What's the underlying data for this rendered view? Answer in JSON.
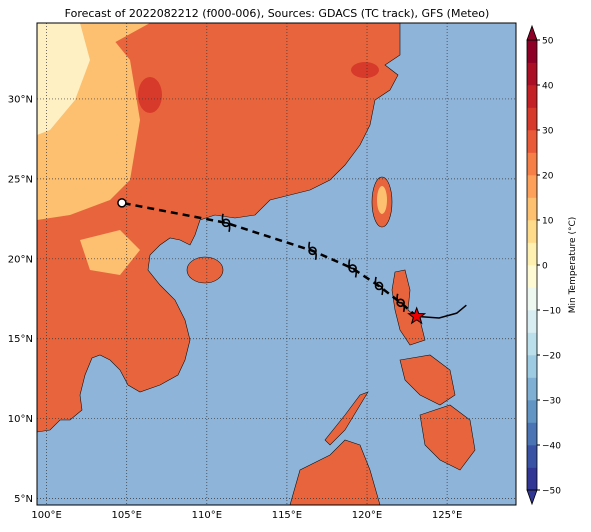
{
  "title": "Forecast of 2022082212 (f000-006), Sources: GDACS (TC track), GFS (Meteo)",
  "map": {
    "xlim": [
      99.4,
      129.3
    ],
    "ylim": [
      4.6,
      34.75
    ],
    "grid": true,
    "xticks": [
      {
        "value": 100,
        "label": "100°E"
      },
      {
        "value": 105,
        "label": "105°E"
      },
      {
        "value": 110,
        "label": "110°E"
      },
      {
        "value": 115,
        "label": "115°E"
      },
      {
        "value": 120,
        "label": "120°E"
      },
      {
        "value": 125,
        "label": "125°E"
      }
    ],
    "yticks": [
      {
        "value": 5,
        "label": "5°N"
      },
      {
        "value": 10,
        "label": "10°N"
      },
      {
        "value": 15,
        "label": "15°N"
      },
      {
        "value": 20,
        "label": "20°N"
      },
      {
        "value": 25,
        "label": "25°N"
      },
      {
        "value": 30,
        "label": "30°N"
      }
    ]
  },
  "track": {
    "observed": {
      "lon": [
        126.2,
        125.6,
        124.5,
        123.1
      ],
      "lat": [
        17.1,
        16.6,
        16.3,
        16.4
      ]
    },
    "forecast": {
      "lon": [
        123.1,
        122.1,
        120.75,
        119.1,
        116.6,
        111.2,
        104.7
      ],
      "lat": [
        16.4,
        17.25,
        18.3,
        19.4,
        20.5,
        22.25,
        23.5
      ]
    }
  },
  "colorbar": {
    "label": "Min Temperature (°C)",
    "lim": [
      -50,
      50
    ],
    "ticks": [
      {
        "value": -50,
        "label": "−50"
      },
      {
        "value": -40,
        "label": "−40"
      },
      {
        "value": -30,
        "label": "−30"
      },
      {
        "value": -20,
        "label": "−20"
      },
      {
        "value": -10,
        "label": "−10"
      },
      0,
      10,
      20,
      30,
      40,
      50
    ],
    "colors": [
      "#313695",
      "#3a52a3",
      "#4a74b4",
      "#6295c4",
      "#7fb0d3",
      "#9ccbe2",
      "#bbdfeb",
      "#d7edf1",
      "#eef8f0",
      "#fefbd4",
      "#fef0b0",
      "#fddb8b",
      "#fdbf70",
      "#fca05a",
      "#f67f48",
      "#e95a38",
      "#d73a2a",
      "#c42126",
      "#aa0f26",
      "#8e0026"
    ]
  }
}
